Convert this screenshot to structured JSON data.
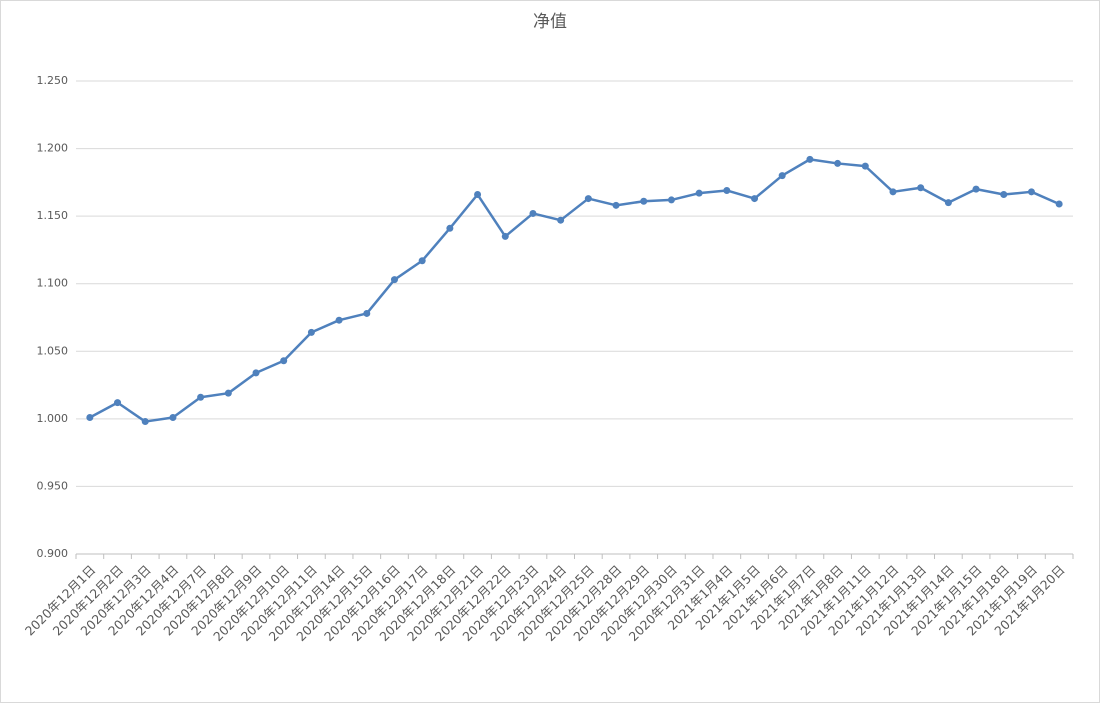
{
  "chart_data": {
    "type": "line",
    "title": "净值",
    "categories": [
      "2020年12月1日",
      "2020年12月2日",
      "2020年12月3日",
      "2020年12月4日",
      "2020年12月7日",
      "2020年12月8日",
      "2020年12月9日",
      "2020年12月10日",
      "2020年12月11日",
      "2020年12月14日",
      "2020年12月15日",
      "2020年12月16日",
      "2020年12月17日",
      "2020年12月18日",
      "2020年12月21日",
      "2020年12月22日",
      "2020年12月23日",
      "2020年12月24日",
      "2020年12月25日",
      "2020年12月28日",
      "2020年12月29日",
      "2020年12月30日",
      "2020年12月31日",
      "2021年1月4日",
      "2021年1月5日",
      "2021年1月6日",
      "2021年1月7日",
      "2021年1月8日",
      "2021年1月11日",
      "2021年1月12日",
      "2021年1月13日",
      "2021年1月14日",
      "2021年1月15日",
      "2021年1月18日",
      "2021年1月19日",
      "2021年1月20日"
    ],
    "values": [
      1.001,
      1.012,
      0.998,
      1.001,
      1.016,
      1.019,
      1.034,
      1.043,
      1.064,
      1.073,
      1.078,
      1.103,
      1.117,
      1.141,
      1.166,
      1.135,
      1.152,
      1.147,
      1.163,
      1.158,
      1.161,
      1.162,
      1.167,
      1.169,
      1.163,
      1.18,
      1.192,
      1.189,
      1.187,
      1.168,
      1.171,
      1.16,
      1.17,
      1.166,
      1.168,
      1.159
    ],
    "color": "#4f81bd",
    "ylim": [
      0.9,
      1.25
    ],
    "yticks": [
      {
        "value": 0.9,
        "label": "0.900"
      },
      {
        "value": 0.95,
        "label": "0.950"
      },
      {
        "value": 1.0,
        "label": "1.000"
      },
      {
        "value": 1.05,
        "label": "1.050"
      },
      {
        "value": 1.1,
        "label": "1.100"
      },
      {
        "value": 1.15,
        "label": "1.150"
      },
      {
        "value": 1.2,
        "label": "1.200"
      },
      {
        "value": 1.25,
        "label": "1.250"
      }
    ],
    "grid": true
  }
}
